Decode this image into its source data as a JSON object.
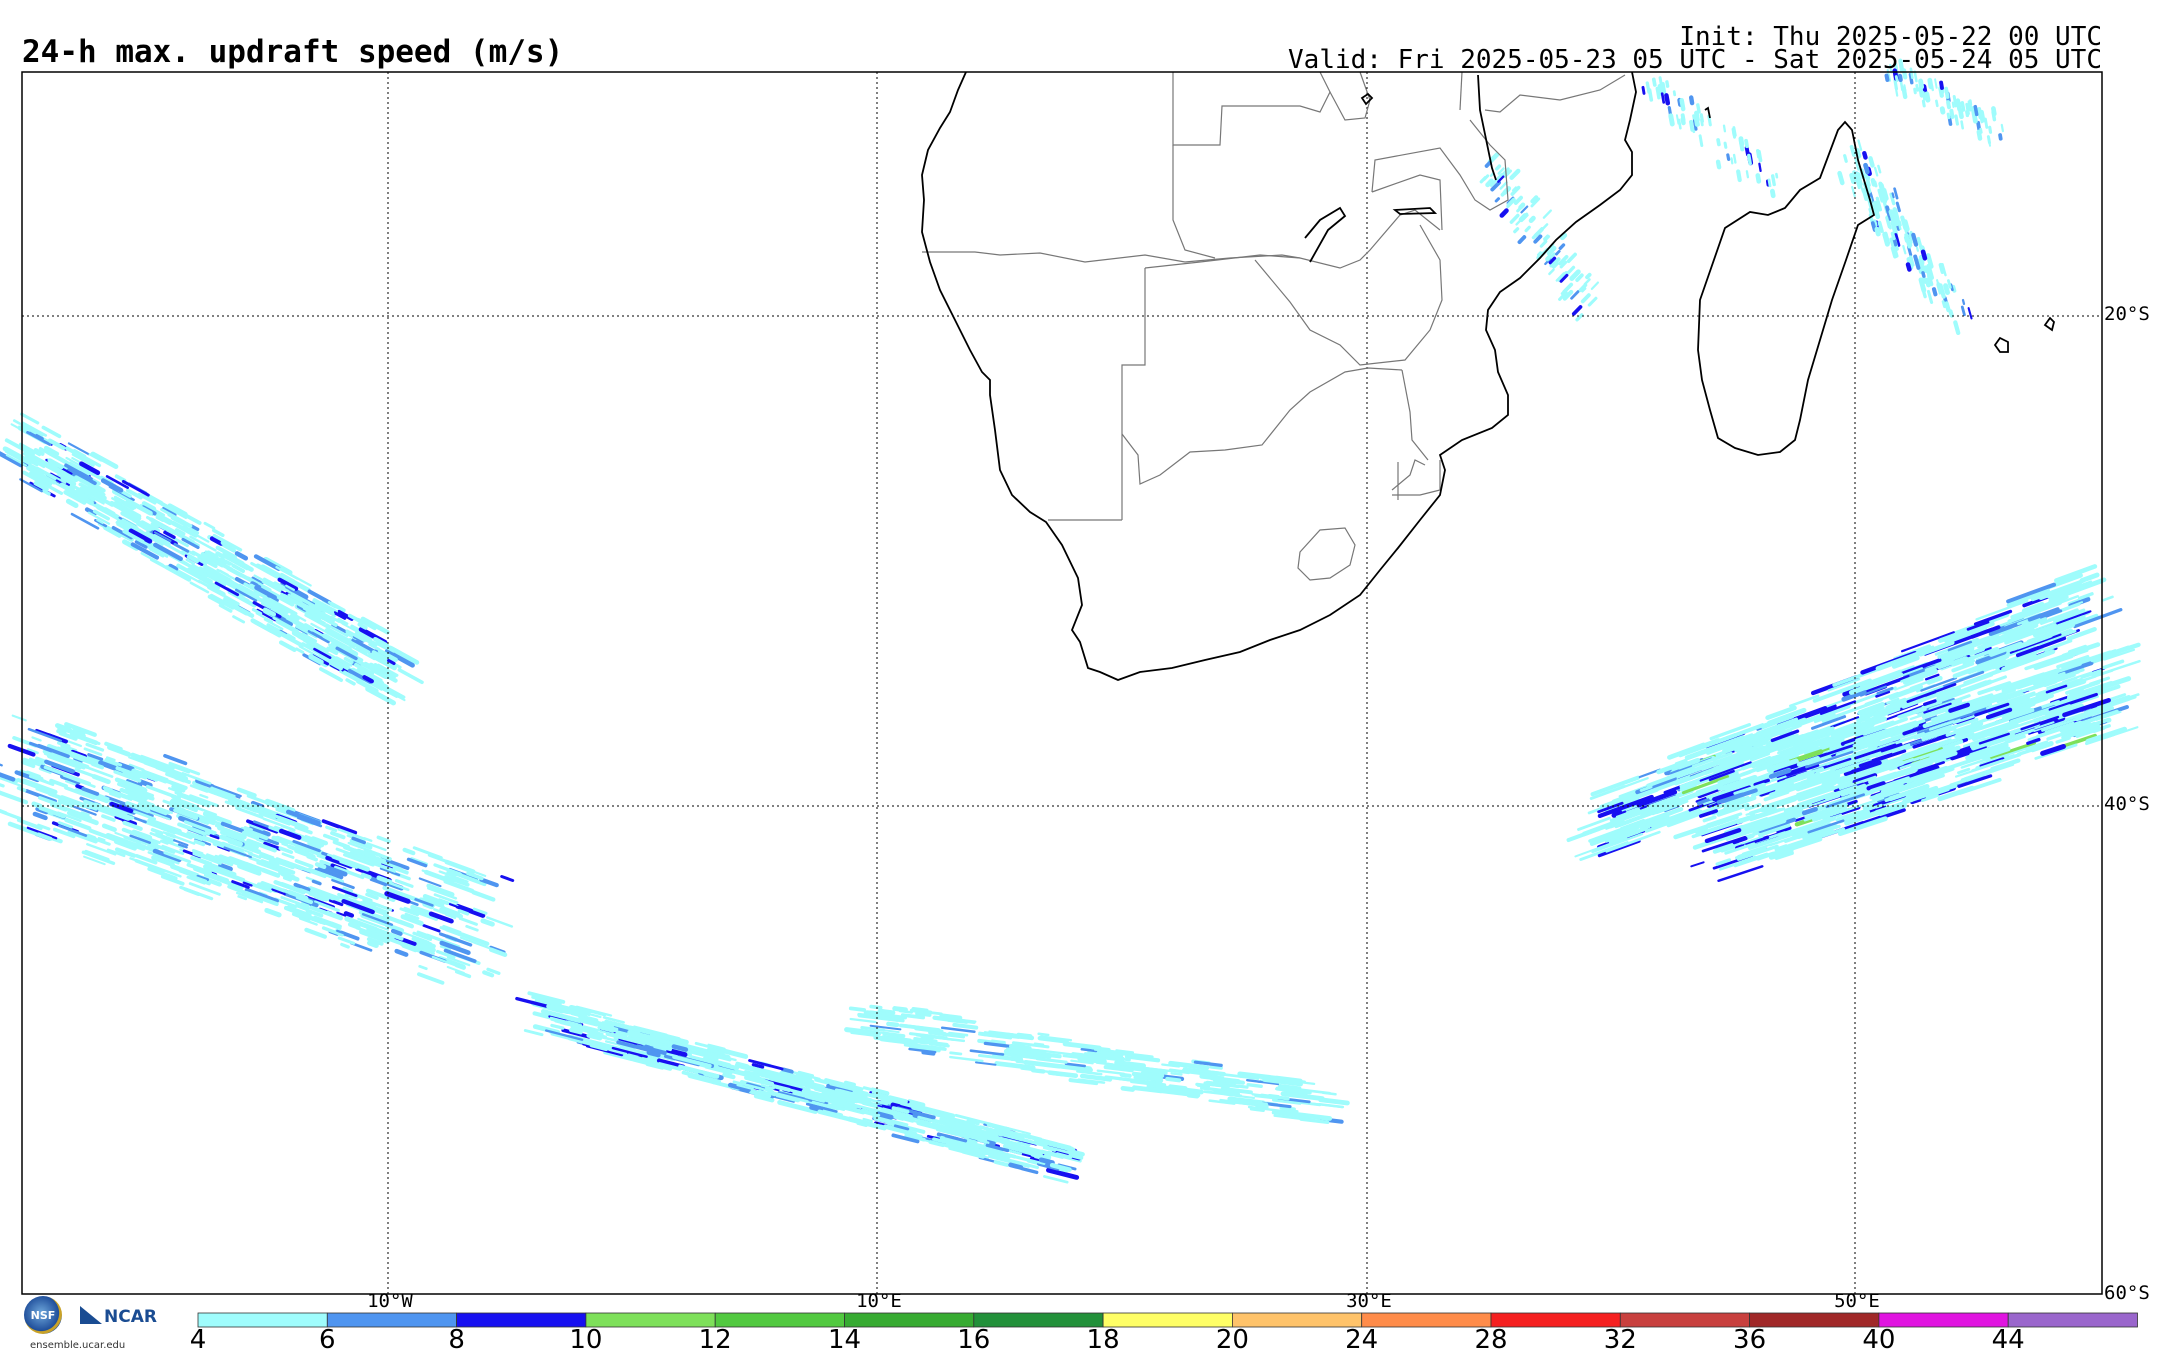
{
  "title": "24-h max. updraft speed (m/s)",
  "init": "Init: Thu 2025-05-22 00 UTC",
  "valid": "Valid: Fri 2025-05-23 05 UTC - Sat 2025-05-24 05 UTC",
  "grid": {
    "lon_labels": [
      "10°W",
      "10°E",
      "30°E",
      "50°E"
    ],
    "lat_labels": [
      "20°S",
      "40°S",
      "60°S"
    ]
  },
  "colorbar": {
    "labels": [
      "4",
      "6",
      "8",
      "10",
      "12",
      "14",
      "16",
      "18",
      "20",
      "24",
      "28",
      "32",
      "36",
      "40",
      "44"
    ],
    "colors": [
      "#9ffcfc",
      "#4f95f0",
      "#1710f0",
      "#7ee05a",
      "#52c940",
      "#37ab32",
      "#22903a",
      "#ffff66",
      "#ffc36a",
      "#ff8c4a",
      "#f52020",
      "#c8403e",
      "#a02828",
      "#e014e0",
      "#9a66cc"
    ]
  },
  "logos": {
    "nsf": "NSF",
    "ncar": "NCAR",
    "url": "ensemble.ucar.edu"
  }
}
